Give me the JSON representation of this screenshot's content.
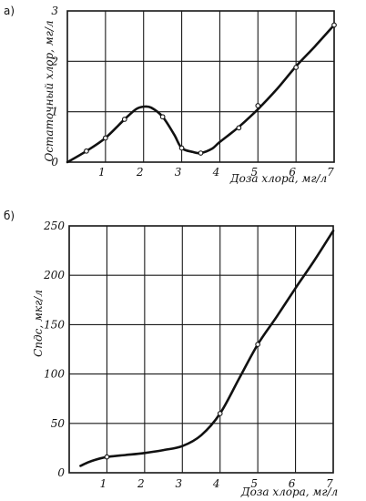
{
  "chart_data": [
    {
      "panel": "а)",
      "type": "line",
      "xlabel": "Доза хлора, мг/л",
      "ylabel": "Остаточный хлор, мг/л",
      "xlim": [
        0,
        7
      ],
      "ylim": [
        0,
        3
      ],
      "x_ticks": [
        1,
        2,
        3,
        4,
        5,
        6,
        7
      ],
      "y_ticks": [
        0,
        1,
        2,
        3
      ],
      "grid": true,
      "curve": {
        "x": [
          0,
          0.5,
          1,
          1.5,
          1.8,
          2.0,
          2.2,
          2.5,
          2.8,
          3.0,
          3.3,
          3.5,
          3.8,
          4.0,
          4.5,
          5.0,
          5.5,
          6.0,
          6.5,
          7.0
        ],
        "y": [
          0,
          0.22,
          0.48,
          0.85,
          1.05,
          1.1,
          1.08,
          0.9,
          0.55,
          0.28,
          0.2,
          0.18,
          0.27,
          0.4,
          0.7,
          1.05,
          1.45,
          1.9,
          2.3,
          2.72
        ]
      },
      "markers": {
        "x": [
          0.5,
          1,
          1.5,
          2.5,
          3.0,
          3.5,
          4.5,
          5.0,
          6.0,
          7.0
        ],
        "y": [
          0.22,
          0.48,
          0.85,
          0.9,
          0.28,
          0.18,
          0.68,
          1.12,
          1.88,
          2.72
        ]
      }
    },
    {
      "panel": "б)",
      "type": "line",
      "xlabel": "Доза хлора, мг/л",
      "ylabel": "Спдс, мкг/л",
      "xlim": [
        0,
        7
      ],
      "ylim": [
        0,
        250
      ],
      "x_ticks": [
        1,
        2,
        3,
        4,
        5,
        6,
        7
      ],
      "y_ticks": [
        0,
        50,
        100,
        150,
        200,
        250
      ],
      "y_tick_labels": [
        "0",
        "50",
        "100",
        "150",
        "200",
        "250"
      ],
      "grid": true,
      "curve": {
        "x": [
          0.3,
          0.6,
          1.0,
          1.5,
          2.0,
          2.5,
          3.0,
          3.5,
          4.0,
          4.5,
          5.0,
          5.5,
          6.0,
          6.5,
          7.0
        ],
        "y": [
          7,
          12,
          16,
          18,
          20,
          23,
          27,
          38,
          60,
          95,
          130,
          158,
          187,
          215,
          245
        ]
      },
      "markers": {
        "x": [
          1,
          4,
          5
        ],
        "y": [
          16,
          60,
          130
        ]
      }
    }
  ]
}
